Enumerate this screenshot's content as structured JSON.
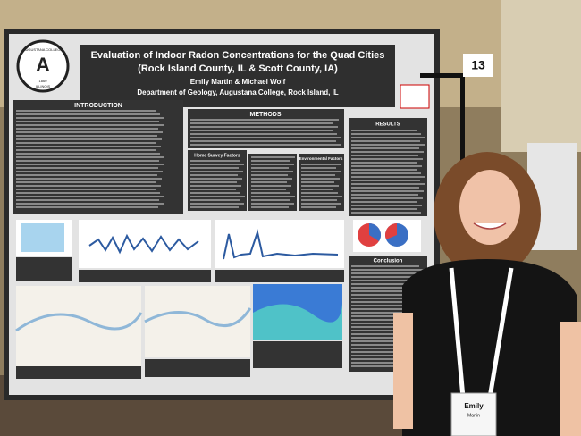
{
  "poster": {
    "title": "Evaluation of Indoor Radon Concentrations for the Quad Cities",
    "subtitle": "(Rock Island County, IL & Scott County, IA)",
    "authors": "Emily Martin & Michael Wolf",
    "affiliation": "Department of Geology, Augustana College, Rock Island, IL",
    "logo": {
      "name": "AUGUSTANA COLLEGE",
      "year": "1860",
      "state": "ILLINOIS"
    },
    "sections": {
      "introduction": "INTRODUCTION",
      "methods": "METHODS",
      "home_survey": "Home Survey Factors",
      "environmental": "Environmental Factors",
      "results": "RESULTS",
      "conclusion": "Conclusion"
    }
  },
  "sign": "13",
  "badge": {
    "first": "Emily",
    "last": "Martin"
  }
}
